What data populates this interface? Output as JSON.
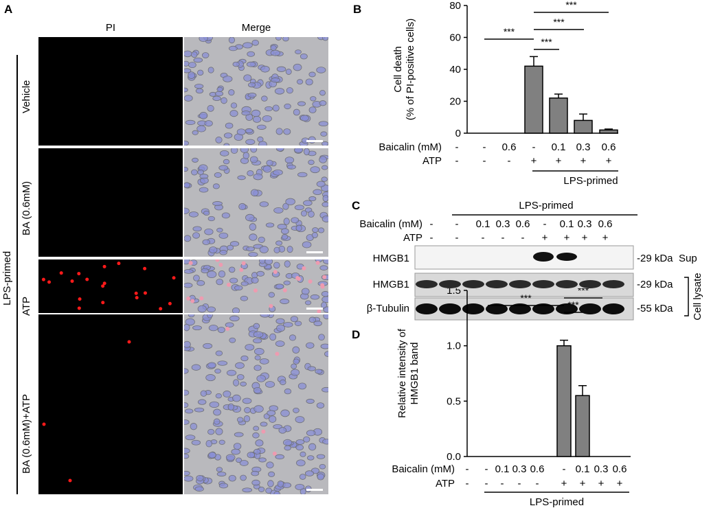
{
  "panelA": {
    "letter": "A",
    "col_labels": [
      "PI",
      "Merge"
    ],
    "group_label": "LPS-primed",
    "row_labels": [
      "Vehicle",
      "BA (0.6mM)",
      "ATP",
      "BA (0.6mM)+ATP"
    ]
  },
  "panelB": {
    "letter": "B",
    "ylabel_line1": "Cell death",
    "ylabel_line2": "(% of PI-positive cells)",
    "yticks": [
      "0",
      "20",
      "40",
      "60",
      "80"
    ],
    "row1_label": "Baicalin (mM)",
    "row1_values": [
      "-",
      "-",
      "0.6",
      "-",
      "0.1",
      "0.3",
      "0.6"
    ],
    "row2_label": "ATP",
    "row2_values": [
      "-",
      "-",
      "-",
      "+",
      "+",
      "+",
      "+"
    ],
    "group_label": "LPS-primed",
    "sig_label": "***"
  },
  "panelC": {
    "letter": "C",
    "group_label": "LPS-primed",
    "row1_label": "Baicalin (mM)",
    "row1_values": [
      "-",
      "-",
      "0.1",
      "0.3",
      "0.6",
      "-",
      "0.1",
      "0.3",
      "0.6"
    ],
    "row2_label": "ATP",
    "row2_values": [
      "-",
      "-",
      "-",
      "-",
      "-",
      "+",
      "+",
      "+",
      "+"
    ],
    "blot_labels": [
      "HMGB1",
      "HMGB1",
      "β-Tubulin"
    ],
    "kda_labels": [
      "-29 kDa",
      "-29 kDa",
      "-55 kDa"
    ],
    "sup_label": "Sup",
    "lysate_label": "Cell lysate"
  },
  "panelD": {
    "letter": "D",
    "ylabel_line1": "Relative intensity of",
    "ylabel_line2": "HMGB1 band",
    "yticks": [
      "0.0",
      "0.5",
      "1.0",
      "1.5"
    ],
    "row1_label": "Baicalin (mM)",
    "row1_values": [
      "-",
      "-",
      "0.1",
      "0.3",
      "0.6",
      "-",
      "0.1",
      "0.3",
      "0.6"
    ],
    "row2_label": "ATP",
    "row2_values": [
      "-",
      "-",
      "-",
      "-",
      "-",
      "+",
      "+",
      "+",
      "+"
    ],
    "group_label": "LPS-primed",
    "sig_label": "***"
  },
  "chart_data": [
    {
      "type": "bar",
      "panel": "B",
      "categories": [
        "1",
        "2",
        "3",
        "4",
        "5",
        "6",
        "7"
      ],
      "values": [
        0,
        0,
        0,
        42,
        22,
        8,
        2
      ],
      "errors": [
        0,
        0,
        0,
        6,
        2.5,
        4,
        0.6
      ],
      "ylim": [
        0,
        80
      ],
      "bar_color": "#808080"
    },
    {
      "type": "bar",
      "panel": "D",
      "categories": [
        "1",
        "2",
        "3",
        "4",
        "5",
        "6",
        "7",
        "8",
        "9"
      ],
      "values": [
        0,
        0,
        0,
        0,
        0,
        1.0,
        0.55,
        0,
        0
      ],
      "errors": [
        0,
        0,
        0,
        0,
        0,
        0.05,
        0.09,
        0,
        0
      ],
      "ylim": [
        0,
        1.5
      ],
      "bar_color": "#808080"
    }
  ]
}
